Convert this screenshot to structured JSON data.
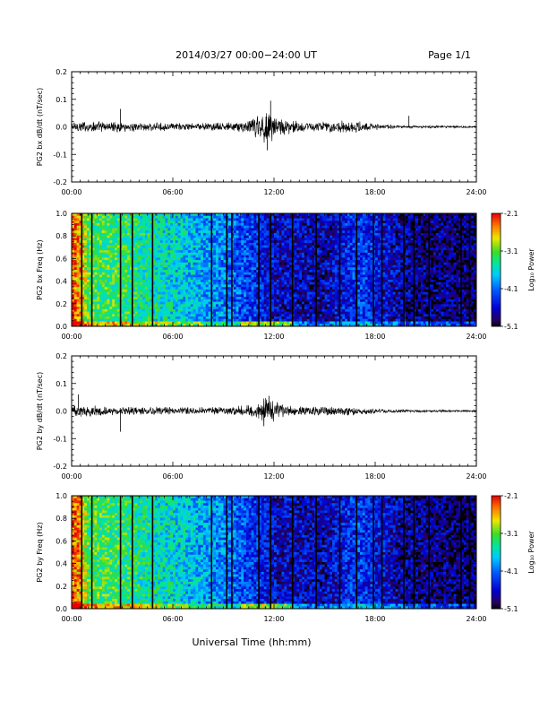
{
  "header": {
    "date_range": "2014/03/27  00:00−24:00 UT",
    "page": "Page 1/1"
  },
  "xlabel": "Universal Time (hh:mm)",
  "x_ticks": [
    "00:00",
    "06:00",
    "12:00",
    "18:00",
    "24:00"
  ],
  "colorbar": {
    "label": "Log₁₀ Power",
    "ticks": [
      "-2.1",
      "-3.1",
      "-4.1",
      "-5.1"
    ]
  },
  "colors": {
    "frame": "#000000",
    "signal": "#000000",
    "gap_line": "#000000"
  },
  "chart_data": [
    {
      "type": "line",
      "ylabel": "PG2 bx dB/dt (nT/sec)",
      "ylim": [
        -0.2,
        0.2
      ],
      "y_ticks": [
        "0.2",
        "0.1",
        "0.0",
        "-0.1",
        "-0.2"
      ],
      "xlim_hours": [
        0,
        24
      ],
      "envelope": [
        {
          "hour": 0,
          "amp": 0.02
        },
        {
          "hour": 3,
          "amp": 0.015
        },
        {
          "hour": 6,
          "amp": 0.012
        },
        {
          "hour": 9,
          "amp": 0.013
        },
        {
          "hour": 10.5,
          "amp": 0.02
        },
        {
          "hour": 11.5,
          "amp": 0.06
        },
        {
          "hour": 12.5,
          "amp": 0.025
        },
        {
          "hour": 14,
          "amp": 0.015
        },
        {
          "hour": 16.5,
          "amp": 0.02
        },
        {
          "hour": 18,
          "amp": 0.01
        },
        {
          "hour": 20,
          "amp": 0.005
        },
        {
          "hour": 24,
          "amp": 0.003
        }
      ],
      "spikes": [
        {
          "hour": 2.9,
          "value": 0.065
        },
        {
          "hour": 11.8,
          "value": 0.095
        },
        {
          "hour": 11.6,
          "value": -0.085
        },
        {
          "hour": 20,
          "value": 0.04
        }
      ]
    },
    {
      "type": "heatmap",
      "ylabel": "PG2 bx Freq (Hz)",
      "ylim": [
        0.0,
        1.0
      ],
      "y_ticks": [
        "1.0",
        "0.8",
        "0.6",
        "0.4",
        "0.2",
        "0.0"
      ],
      "zlim": [
        -5.1,
        -2.1
      ],
      "xlim_hours": [
        0,
        24
      ],
      "power_profile": [
        {
          "hour": 0,
          "power": -2.3
        },
        {
          "hour": 0.6,
          "power": -2.6
        },
        {
          "hour": 1.0,
          "power": -3.2
        },
        {
          "hour": 3,
          "power": -3.3
        },
        {
          "hour": 6,
          "power": -3.6
        },
        {
          "hour": 9,
          "power": -4.0
        },
        {
          "hour": 12,
          "power": -4.6
        },
        {
          "hour": 15,
          "power": -4.7
        },
        {
          "hour": 17,
          "power": -4.3
        },
        {
          "hour": 20,
          "power": -4.8
        },
        {
          "hour": 24,
          "power": -4.9
        }
      ],
      "gap_hours": [
        0.6,
        1.2,
        2.9,
        3.6,
        4.8,
        8.3,
        9.2,
        9.5,
        11.1,
        11.8,
        13.1,
        14.5,
        15.9,
        16.9,
        17.9,
        18.4,
        19.7,
        20.3,
        21.2,
        23.1,
        23.6
      ]
    },
    {
      "type": "line",
      "ylabel": "PG2 by dB/dt (nT/sec)",
      "ylim": [
        -0.2,
        0.2
      ],
      "y_ticks": [
        "0.2",
        "0.1",
        "0.0",
        "-0.1",
        "-0.2"
      ],
      "xlim_hours": [
        0,
        24
      ],
      "envelope": [
        {
          "hour": 0,
          "amp": 0.02
        },
        {
          "hour": 3,
          "amp": 0.014
        },
        {
          "hour": 6,
          "amp": 0.012
        },
        {
          "hour": 9,
          "amp": 0.013
        },
        {
          "hour": 10.5,
          "amp": 0.02
        },
        {
          "hour": 11.5,
          "amp": 0.045
        },
        {
          "hour": 12.5,
          "amp": 0.02
        },
        {
          "hour": 14,
          "amp": 0.014
        },
        {
          "hour": 16.5,
          "amp": 0.015
        },
        {
          "hour": 18,
          "amp": 0.008
        },
        {
          "hour": 20,
          "amp": 0.004
        },
        {
          "hour": 24,
          "amp": 0.003
        }
      ],
      "spikes": [
        {
          "hour": 0.4,
          "value": 0.06
        },
        {
          "hour": 2.9,
          "value": -0.075
        },
        {
          "hour": 11.7,
          "value": 0.055
        },
        {
          "hour": 11.4,
          "value": -0.055
        }
      ]
    },
    {
      "type": "heatmap",
      "ylabel": "PG2 by Freq (Hz)",
      "ylim": [
        0.0,
        1.0
      ],
      "y_ticks": [
        "1.0",
        "0.8",
        "0.6",
        "0.4",
        "0.2",
        "0.0"
      ],
      "zlim": [
        -5.1,
        -2.1
      ],
      "xlim_hours": [
        0,
        24
      ],
      "power_profile": [
        {
          "hour": 0,
          "power": -2.3
        },
        {
          "hour": 0.6,
          "power": -2.6
        },
        {
          "hour": 1.0,
          "power": -3.2
        },
        {
          "hour": 3,
          "power": -3.3
        },
        {
          "hour": 6,
          "power": -3.6
        },
        {
          "hour": 9,
          "power": -4.0
        },
        {
          "hour": 12,
          "power": -4.6
        },
        {
          "hour": 15,
          "power": -4.7
        },
        {
          "hour": 17,
          "power": -4.3
        },
        {
          "hour": 20,
          "power": -4.8
        },
        {
          "hour": 24,
          "power": -4.9
        }
      ],
      "gap_hours": [
        0.6,
        1.2,
        2.9,
        3.6,
        4.8,
        8.3,
        9.2,
        9.5,
        11.1,
        11.8,
        13.1,
        14.5,
        15.9,
        16.9,
        17.9,
        18.4,
        19.7,
        20.3,
        21.2,
        23.1,
        23.6
      ]
    }
  ]
}
